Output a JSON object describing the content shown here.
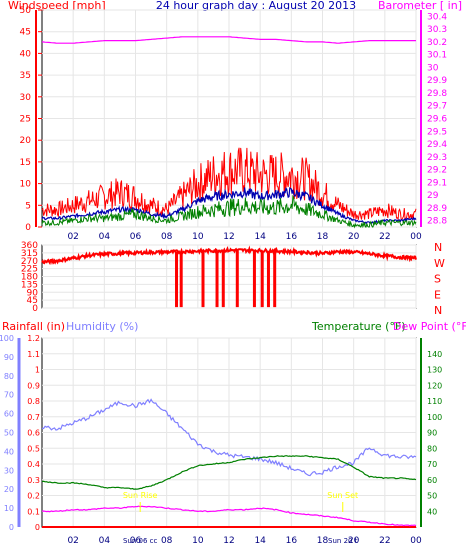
{
  "title": "24 hour graph day : August 20 2013",
  "colors": {
    "background": "#ffffff",
    "grid": "#e6e6e6",
    "frame": "#000000",
    "red": "#ff0000",
    "magenta": "#ff00ff",
    "blue": "#1a1aff",
    "dark_blue": "#0000b0",
    "green": "#008000",
    "lilac": "#8080ff",
    "sun_yellow": "#ffff00"
  },
  "x_ticks": [
    "02",
    "04",
    "06",
    "08",
    "10",
    "12",
    "14",
    "16",
    "18",
    "20",
    "22",
    "00"
  ],
  "chart_data": [
    {
      "type": "line",
      "name": "wind-barometer",
      "labels": {
        "left": "Windspeed [mph]",
        "right": "Barometer [ in]"
      },
      "left_ticks": [
        "0",
        "5",
        "10",
        "15",
        "20",
        "25",
        "30",
        "35",
        "40",
        "45",
        "50"
      ],
      "right_ticks": [
        "28.8",
        "28.9",
        "29",
        "29.1",
        "29.2",
        "29.3",
        "29.4",
        "29.5",
        "29.6",
        "29.7",
        "29.8",
        "29.9",
        "30",
        "30.1",
        "30.2",
        "30.3",
        "30.4"
      ],
      "ylim_left": [
        0,
        50
      ],
      "ylim_right": [
        28.75,
        30.45
      ],
      "x": [
        0,
        1,
        2,
        3,
        4,
        5,
        6,
        7,
        8,
        9,
        10,
        11,
        12,
        13,
        14,
        15,
        16,
        17,
        18,
        19,
        20,
        21,
        22,
        23,
        24
      ],
      "series": [
        {
          "key": "gust",
          "axis": "left",
          "color": "red",
          "values": [
            4,
            4,
            5,
            6,
            7,
            8,
            7,
            5,
            4,
            7,
            10,
            12,
            13,
            13,
            12,
            12,
            12,
            11,
            8,
            5,
            3,
            3,
            4,
            3,
            3
          ]
        },
        {
          "key": "avg",
          "axis": "left",
          "color": "dark_blue",
          "values": [
            2,
            2,
            2.5,
            3,
            3.5,
            4,
            4,
            3,
            2.5,
            4,
            6,
            7,
            7.5,
            8,
            7,
            7.5,
            8,
            7,
            5,
            3,
            1.5,
            1,
            1.5,
            1.5,
            2
          ]
        },
        {
          "key": "speed",
          "axis": "left",
          "color": "green",
          "values": [
            1,
            1,
            1.5,
            2,
            2,
            2.5,
            3,
            2,
            1.5,
            2.5,
            3.5,
            4,
            4.5,
            5,
            4.5,
            4.5,
            5,
            4,
            3,
            1.5,
            0.5,
            0.5,
            1,
            1,
            1
          ]
        },
        {
          "key": "barometer",
          "axis": "right",
          "color": "magenta",
          "values": [
            30.2,
            30.19,
            30.19,
            30.2,
            30.21,
            30.21,
            30.21,
            30.22,
            30.23,
            30.24,
            30.24,
            30.24,
            30.24,
            30.23,
            30.22,
            30.22,
            30.21,
            30.2,
            30.2,
            30.19,
            30.2,
            30.21,
            30.21,
            30.21,
            30.21
          ]
        }
      ]
    },
    {
      "type": "line",
      "name": "wind-direction",
      "left_ticks": [
        "0",
        "45",
        "90",
        "135",
        "180",
        "225",
        "270",
        "315",
        "360"
      ],
      "right_labels": [
        "N",
        "W",
        "S",
        "E",
        "N"
      ],
      "ylim": [
        0,
        360
      ],
      "x": [
        0,
        1,
        2,
        3,
        4,
        5,
        6,
        7,
        8,
        9,
        10,
        11,
        12,
        13,
        14,
        15,
        16,
        17,
        18,
        19,
        20,
        21,
        22,
        23,
        24
      ],
      "values": [
        262,
        270,
        285,
        300,
        308,
        312,
        315,
        318,
        320,
        322,
        325,
        328,
        330,
        330,
        328,
        326,
        322,
        318,
        312,
        322,
        320,
        310,
        298,
        290,
        285
      ],
      "north_swings_at": [
        8.6,
        8.9,
        10.3,
        11.2,
        11.6,
        12.5,
        13.6,
        14.1,
        14.5,
        14.9
      ]
    },
    {
      "type": "line",
      "name": "rain-humidity-temperature",
      "labels": {
        "rainfall": "Rainfall (in)",
        "humidity": "Humidity (%)",
        "temperature": "Temperature (°F)",
        "dew_point": "Dew Point (°F)"
      },
      "humidity_ticks": [
        "0",
        "10",
        "20",
        "30",
        "40",
        "50",
        "60",
        "70",
        "80",
        "90",
        "100"
      ],
      "rain_ticks": [
        "0",
        "0.1",
        "0.2",
        "0.3",
        "0.4",
        "0.5",
        "0.6",
        "0.7",
        "0.8",
        "0.9",
        "1",
        "1.1",
        "1.2"
      ],
      "temp_ticks": [
        "40",
        "50",
        "60",
        "70",
        "80",
        "90",
        "100",
        "110",
        "120",
        "130",
        "140"
      ],
      "ylim_humidity": [
        0,
        100
      ],
      "ylim_rain": [
        0,
        1.2
      ],
      "ylim_temperature": [
        30,
        150
      ],
      "x": [
        0,
        1,
        2,
        3,
        4,
        5,
        6,
        7,
        8,
        9,
        10,
        11,
        12,
        13,
        14,
        15,
        16,
        17,
        18,
        19,
        20,
        21,
        22,
        23,
        24
      ],
      "series": [
        {
          "key": "rainfall",
          "axis": "rain",
          "color": "red",
          "values": [
            0,
            0,
            0,
            0,
            0,
            0,
            0,
            0,
            0,
            0,
            0,
            0,
            0,
            0,
            0,
            0,
            0,
            0,
            0,
            0,
            0,
            0,
            0,
            0,
            0
          ]
        },
        {
          "key": "humidity",
          "axis": "humidity",
          "color": "lilac",
          "values": [
            53,
            52,
            55,
            58,
            62,
            66,
            64,
            67,
            60,
            52,
            44,
            40,
            38,
            37,
            36,
            34,
            31,
            28,
            29,
            32,
            34,
            42,
            38,
            37,
            37
          ]
        },
        {
          "key": "temperature",
          "axis": "temperature",
          "color": "green",
          "values": [
            59,
            58,
            58,
            57,
            55,
            55,
            54,
            56,
            60,
            65,
            69,
            70,
            71,
            73,
            74,
            75,
            75,
            75,
            74,
            73,
            68,
            62,
            61,
            61,
            60
          ]
        },
        {
          "key": "dew_point",
          "axis": "temperature",
          "color": "magenta",
          "values": [
            40,
            40,
            41,
            41,
            42,
            42,
            43,
            43,
            42,
            41,
            40,
            40,
            41,
            41,
            42,
            41,
            39,
            38,
            37,
            36,
            34,
            33,
            32,
            31,
            31
          ]
        }
      ],
      "sun_markers": [
        {
          "label": "Sun Rise",
          "x": 6.3
        },
        {
          "label": "Sun Set",
          "x": 19.3
        }
      ],
      "x_axis_extra_labels": [
        "Sun 06 cc",
        "Sun 20 t"
      ]
    }
  ]
}
